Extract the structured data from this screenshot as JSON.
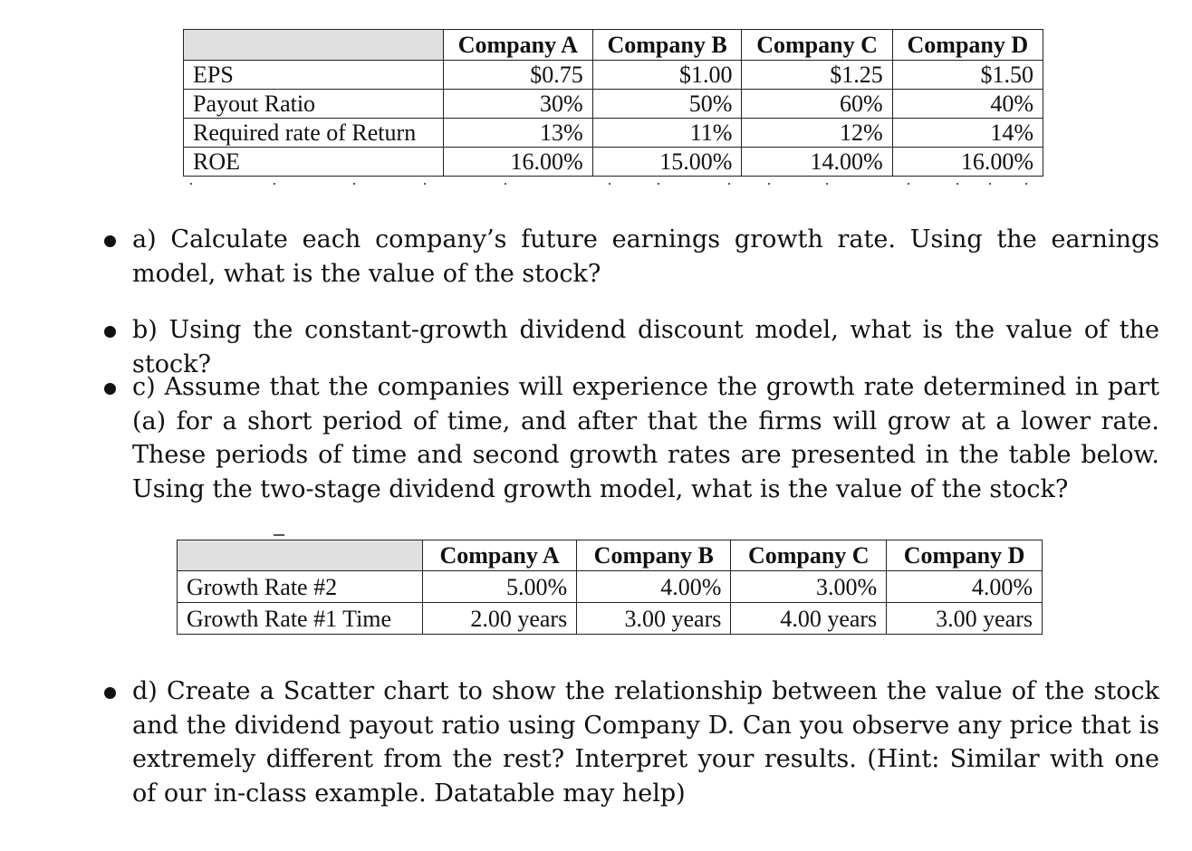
{
  "table1": {
    "headers": [
      "",
      "Company A",
      "Company B",
      "Company C",
      "Company D"
    ],
    "rows": [
      {
        "label": "EPS",
        "values": [
          "$0.75",
          "$1.00",
          "$1.25",
          "$1.50"
        ]
      },
      {
        "label": "Payout Ratio",
        "values": [
          "30%",
          "50%",
          "60%",
          "40%"
        ]
      },
      {
        "label": "Required rate of Return",
        "values": [
          "13%",
          "11%",
          "12%",
          "14%"
        ]
      },
      {
        "label": "ROE",
        "values": [
          "16.00%",
          "15.00%",
          "14.00%",
          "16.00%"
        ]
      }
    ]
  },
  "questions": {
    "a": "a) Calculate each company’s future earnings growth rate. Using the earnings model, what is the value of the stock?",
    "b": "b) Using the constant-growth dividend discount model, what is the value of the stock?",
    "c": "c) Assume that the companies will experience the growth rate determined in part (a) for a short period of time, and after that the firms will grow at a lower rate. These periods of time and second growth rates are presented in the table below. Using the two-stage dividend growth model, what is the value of the stock?",
    "d": "d) Create a Scatter chart to show the relationship between the value of the stock and the dividend payout ratio using Company D. Can you observe any price that is extremely different from the rest? Interpret your results. (Hint: Similar with one of our in-class example. Datatable may help)"
  },
  "table2": {
    "headers": [
      "",
      "Company A",
      "Company B",
      "Company C",
      "Company D"
    ],
    "rows": [
      {
        "label": "Growth Rate #2",
        "values": [
          "5.00%",
          "4.00%",
          "3.00%",
          "4.00%"
        ]
      },
      {
        "label": "Growth Rate #1 Time",
        "values": [
          "2.00 years",
          "3.00 years",
          "4.00 years",
          "3.00 years"
        ]
      }
    ]
  }
}
